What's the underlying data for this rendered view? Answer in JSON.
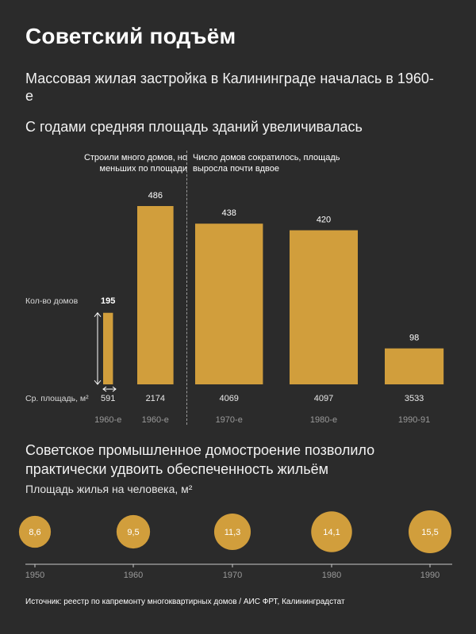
{
  "title": "Советский подъём",
  "subtitle": "Массовая жилая застройка в Калининграде началась в 1960-е",
  "heading1": "С годами средняя площадь зданий увеличивалась",
  "note_left": "Строили много домов, но меньших по площади",
  "note_right": "Число домов сократилось, площадь выросла почти вдвое",
  "heading2": "Советское промышленное домостроение позволило практически удвоить обеспеченность жильём",
  "subheading2": "Площадь жилья на человека, м²",
  "source": "Источник: реестр по капремонту многоквартирных домов / АИС ФРТ, Калининградстат",
  "colors": {
    "background": "#2b2b2b",
    "accent": "#d19e3c",
    "text": "#ffffff",
    "muted": "#9a9a9a"
  },
  "chart_data": [
    {
      "type": "bar",
      "row_labels": {
        "count": "Кол-во домов",
        "area": "Ср. площадь, м²"
      },
      "categories": [
        "1960-е",
        "1960-е",
        "1970-е",
        "1980-е",
        "1990-91"
      ],
      "count_values": [
        195,
        486,
        438,
        420,
        98
      ],
      "area_values": [
        591,
        2174,
        4069,
        4097,
        3533
      ],
      "encoding": "bar width ~ average area, bar height ~ number of buildings"
    },
    {
      "type": "scatter",
      "x": [
        1950,
        1960,
        1970,
        1980,
        1990
      ],
      "values": [
        8.6,
        9.5,
        11.3,
        14.1,
        15.5
      ],
      "value_labels": [
        "8,6",
        "9,5",
        "11,3",
        "14,1",
        "15,5"
      ],
      "encoding": "circle area ~ value"
    }
  ]
}
